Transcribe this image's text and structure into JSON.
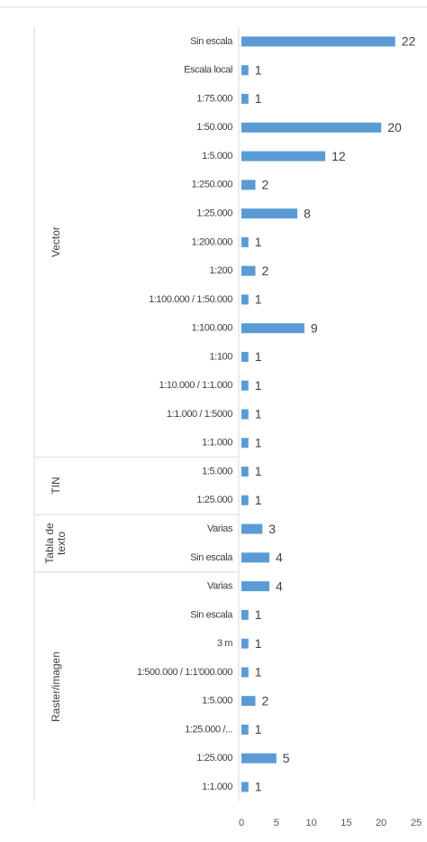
{
  "chart_data": {
    "type": "bar",
    "orientation": "horizontal",
    "color": "#5b9bd5",
    "xlim": [
      0,
      25
    ],
    "xticks": [
      0,
      5,
      10,
      15,
      20,
      25
    ],
    "groups": [
      {
        "name": "Vector",
        "categories": [
          "Sin escala",
          "Escala local",
          "1:75.000",
          "1:50.000",
          "1:5.000",
          "1:250.000",
          "1:25.000",
          "1:200.000",
          "1:200",
          "1:100.000 / 1:50.000",
          "1:100.000",
          "1:100",
          "1:10.000 / 1:1.000",
          "1:1.000 / 1:5000",
          "1:1.000"
        ],
        "values": [
          22,
          1,
          1,
          20,
          12,
          2,
          8,
          1,
          2,
          1,
          9,
          1,
          1,
          1,
          1
        ]
      },
      {
        "name": "TIN",
        "categories": [
          "1:5.000",
          "1:25.000"
        ],
        "values": [
          1,
          1
        ]
      },
      {
        "name": "Tabla de texto",
        "categories": [
          "Varias",
          "Sin escala"
        ],
        "values": [
          3,
          4
        ]
      },
      {
        "name": "Raster/imagen",
        "categories": [
          "Varias",
          "Sin escala",
          "3 m",
          "1:500.000 / 1:1'000.000",
          "1:5.000",
          "1:25.000 /...",
          "1:25.000",
          "1:1.000"
        ],
        "values": [
          4,
          1,
          1,
          1,
          2,
          1,
          5,
          1
        ]
      }
    ]
  }
}
